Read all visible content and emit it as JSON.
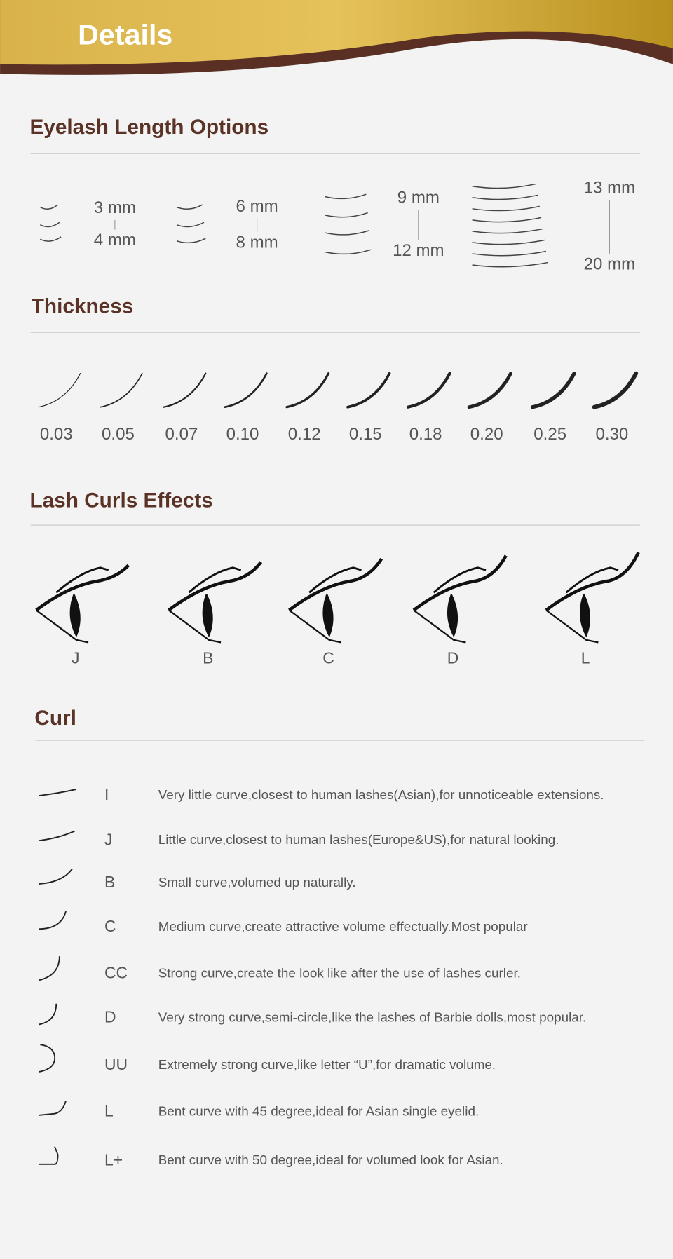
{
  "header": {
    "title": "Details"
  },
  "length": {
    "title": "Eyelash Length Options",
    "groups": [
      {
        "min": "3 mm",
        "max": "4 mm"
      },
      {
        "min": "6 mm",
        "max": "8 mm"
      },
      {
        "min": "9 mm",
        "max": "12 mm"
      },
      {
        "min": "13 mm",
        "max": "20 mm"
      }
    ]
  },
  "thickness": {
    "title": "Thickness",
    "items": [
      "0.03",
      "0.05",
      "0.07",
      "0.10",
      "0.12",
      "0.15",
      "0.18",
      "0.20",
      "0.25",
      "0.30"
    ]
  },
  "effects": {
    "title": "Lash Curls Effects",
    "items": [
      "J",
      "B",
      "C",
      "D",
      "L"
    ]
  },
  "curl": {
    "title": "Curl",
    "rows": [
      {
        "type": "I",
        "description": "Very little curve,closest to human lashes(Asian),for unnoticeable  extensions."
      },
      {
        "type": "J",
        "description": "Little curve,closest to human lashes(Europe&US),for natural looking."
      },
      {
        "type": "B",
        "description": "Small curve,volumed up naturally."
      },
      {
        "type": "C",
        "description": "Medium curve,create attractive volume effectually.Most popular"
      },
      {
        "type": "CC",
        "description": "Strong curve,create the look like after the use of lashes curler."
      },
      {
        "type": "D",
        "description": "Very strong curve,semi-circle,like the lashes of Barbie dolls,most popular."
      },
      {
        "type": "UU",
        "description": "Extremely strong curve,like letter “U”,for dramatic volume."
      },
      {
        "type": "L",
        "description": "Bent curve with 45 degree,ideal for Asian single eyelid."
      },
      {
        "type": "L+",
        "description": "Bent curve with 50 degree,ideal for volumed look for Asian."
      }
    ]
  }
}
